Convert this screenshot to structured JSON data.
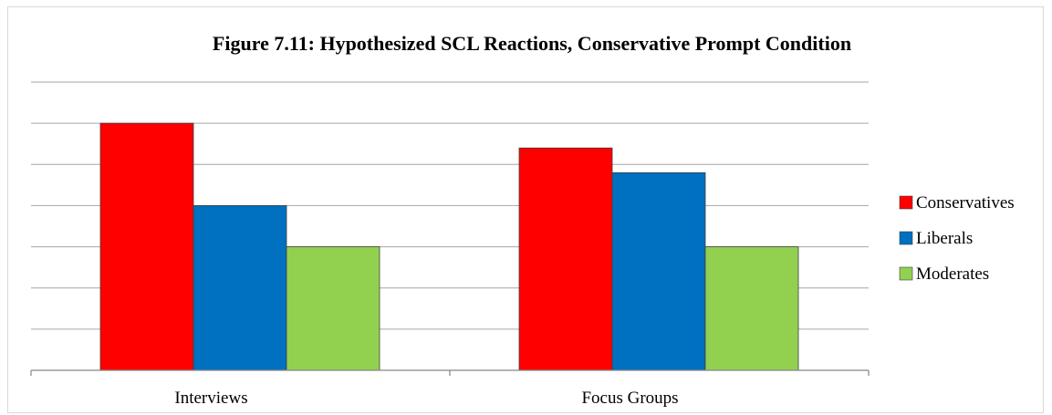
{
  "chart_data": {
    "type": "bar",
    "title": "Figure 7.11: Hypothesized SCL Reactions, Conservative Prompt Condition",
    "categories": [
      "Interviews",
      "Focus Groups"
    ],
    "series": [
      {
        "name": "Conservatives",
        "color": "#ff0000",
        "values": [
          6,
          5.4
        ]
      },
      {
        "name": "Liberals",
        "color": "#0070c0",
        "values": [
          4,
          4.8
        ]
      },
      {
        "name": "Moderates",
        "color": "#92d050",
        "values": [
          3,
          3
        ]
      }
    ],
    "ylim": [
      0,
      7
    ],
    "grid": true,
    "y_tick_labels_shown": false,
    "legend": "right"
  }
}
